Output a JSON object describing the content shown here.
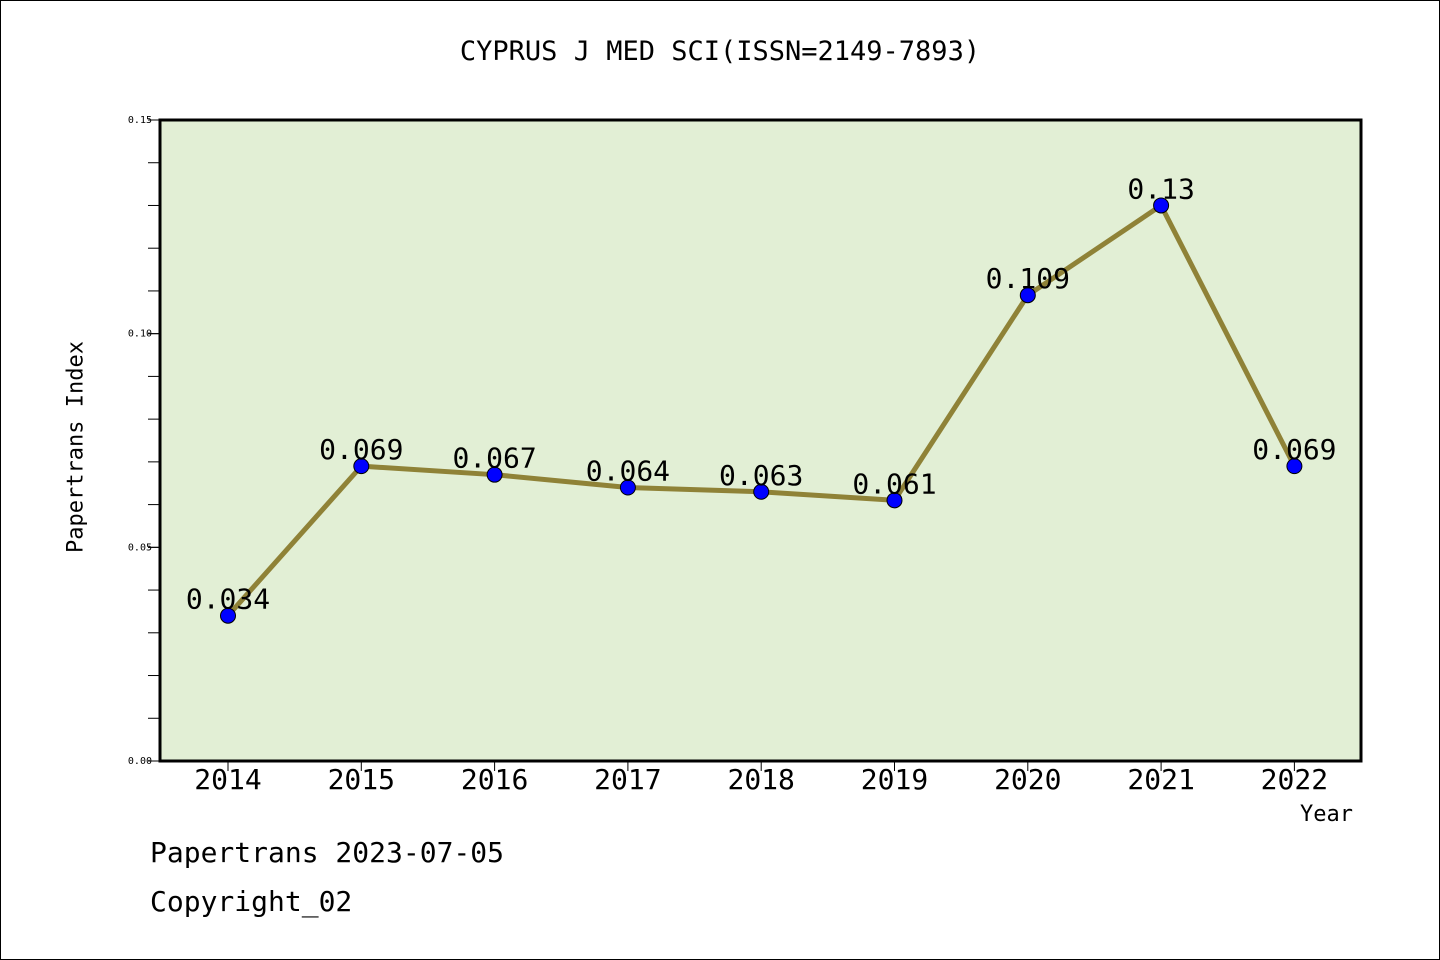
{
  "chart_data": {
    "type": "line",
    "title": "CYPRUS J MED SCI(ISSN=2149-7893)",
    "xlabel": "Year",
    "ylabel": "Papertrans Index",
    "categories": [
      "2014",
      "2015",
      "2016",
      "2017",
      "2018",
      "2019",
      "2020",
      "2021",
      "2022"
    ],
    "series": [
      {
        "values": [
          0.034,
          0.069,
          0.067,
          0.064,
          0.063,
          0.061,
          0.109,
          0.13,
          0.069
        ],
        "labels": [
          "0.034",
          "0.069",
          "0.067",
          "0.064",
          "0.063",
          "0.061",
          "0.109",
          "0.13",
          "0.069"
        ]
      }
    ],
    "ylim": [
      0,
      0.15
    ],
    "yticks": [
      "0.00",
      "0.05",
      "0.10",
      "0.15"
    ],
    "yticks_values": [
      0,
      0.05,
      0.1,
      0.15
    ],
    "y_minor_step": 0.01,
    "grid": false,
    "colors": {
      "plot_background": "#e2efd5",
      "line": "#8f8237",
      "marker": "#0000ff"
    }
  },
  "footer": {
    "line1": "Papertrans 2023-07-05",
    "line2": "Copyright_02"
  }
}
